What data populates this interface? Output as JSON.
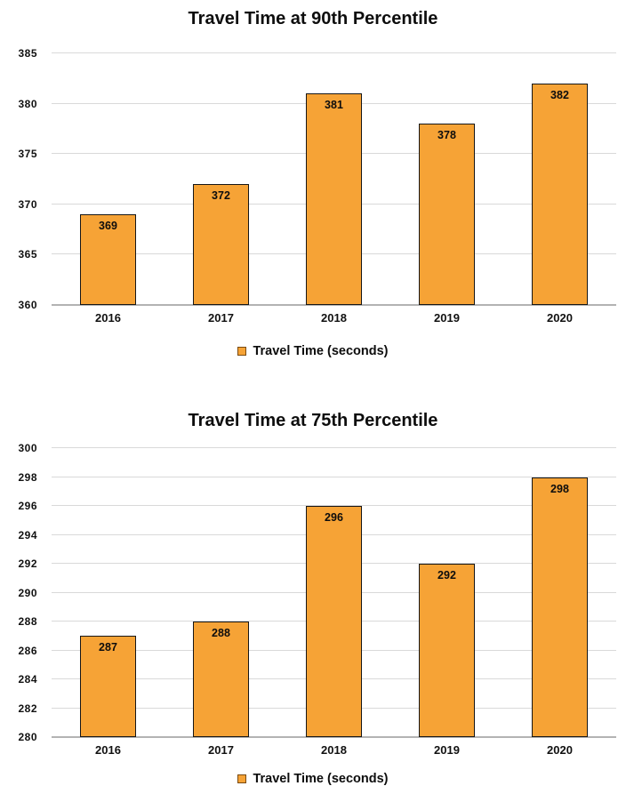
{
  "colors": {
    "bar_fill": "#F6A336",
    "bar_border": "#161616",
    "gridline": "#D9D9D9",
    "axis_baseline": "#B3B3B3",
    "text": "#111111",
    "legend_swatch_border": "#7A4A10"
  },
  "chart_data": [
    {
      "type": "bar",
      "title": "Travel Time at 90th Percentile",
      "categories": [
        "2016",
        "2017",
        "2018",
        "2019",
        "2020"
      ],
      "values": [
        369,
        372,
        381,
        378,
        382
      ],
      "data_labels": [
        369,
        372,
        381,
        378,
        382
      ],
      "ylabel": "",
      "xlabel": "",
      "ylim": [
        360,
        385
      ],
      "ytick_step": 5,
      "ytick_labels": [
        "360",
        "365",
        "370",
        "375",
        "380",
        "385"
      ],
      "grid": true,
      "legend": {
        "label": "Travel Time (seconds)",
        "position": "bottom"
      }
    },
    {
      "type": "bar",
      "title": "Travel Time at 75th Percentile",
      "categories": [
        "2016",
        "2017",
        "2018",
        "2019",
        "2020"
      ],
      "values": [
        287,
        288,
        296,
        292,
        298
      ],
      "data_labels": [
        287,
        288,
        296,
        292,
        298
      ],
      "ylabel": "",
      "xlabel": "",
      "ylim": [
        280,
        300
      ],
      "ytick_step": 2,
      "ytick_labels": [
        "280",
        "282",
        "284",
        "286",
        "288",
        "290",
        "292",
        "294",
        "296",
        "298",
        "300"
      ],
      "grid": true,
      "legend": {
        "label": "Travel Time (seconds)",
        "position": "bottom"
      }
    }
  ]
}
